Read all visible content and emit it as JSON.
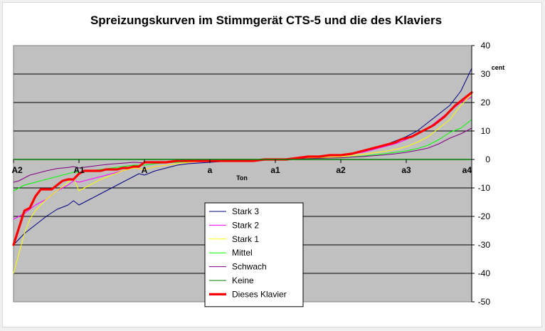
{
  "chart_data": {
    "type": "line",
    "title": "Spreizungskurven im Stimmgerät CTS-5 und die des Klaviers",
    "xlabel": "Ton",
    "ylabel": "cent",
    "ylim": [
      -50,
      40
    ],
    "yticks": [
      40,
      30,
      20,
      10,
      0,
      -10,
      -20,
      -30,
      -40,
      -50
    ],
    "grid": true,
    "legend_position": "bottom-center",
    "plot_background": "#c0c0c0",
    "x_range": [
      0,
      84
    ],
    "x_ticks": [
      {
        "x": 0,
        "label": "A2"
      },
      {
        "x": 12,
        "label": "A1"
      },
      {
        "x": 24,
        "label": "A"
      },
      {
        "x": 36,
        "label": "a"
      },
      {
        "x": 48,
        "label": "a1"
      },
      {
        "x": 60,
        "label": "a2"
      },
      {
        "x": 72,
        "label": "a3"
      },
      {
        "x": 84,
        "label": "a4"
      }
    ],
    "series": [
      {
        "name": "Stark 3",
        "color": "#000080",
        "width": 1,
        "points": [
          [
            0,
            -30
          ],
          [
            2,
            -26
          ],
          [
            4,
            -23
          ],
          [
            6,
            -20
          ],
          [
            8,
            -17.5
          ],
          [
            10,
            -16
          ],
          [
            11,
            -14.5
          ],
          [
            12,
            -16
          ],
          [
            14,
            -14
          ],
          [
            16,
            -12
          ],
          [
            18,
            -10
          ],
          [
            20,
            -8
          ],
          [
            22,
            -6
          ],
          [
            23,
            -5
          ],
          [
            24,
            -5.5
          ],
          [
            26,
            -4
          ],
          [
            28,
            -3
          ],
          [
            30,
            -2
          ],
          [
            32,
            -1.5
          ],
          [
            36,
            -1
          ],
          [
            40,
            -0.5
          ],
          [
            44,
            -0.3
          ],
          [
            48,
            0
          ],
          [
            52,
            0.5
          ],
          [
            56,
            1
          ],
          [
            60,
            1.5
          ],
          [
            62,
            2
          ],
          [
            64,
            3
          ],
          [
            66,
            4
          ],
          [
            68,
            5
          ],
          [
            70,
            6.5
          ],
          [
            72,
            8
          ],
          [
            74,
            10
          ],
          [
            76,
            13
          ],
          [
            78,
            16
          ],
          [
            80,
            19
          ],
          [
            82,
            24
          ],
          [
            84,
            32
          ]
        ]
      },
      {
        "name": "Stark 2",
        "color": "#ff00ff",
        "width": 1,
        "points": [
          [
            0,
            -21
          ],
          [
            2,
            -19
          ],
          [
            4,
            -16
          ],
          [
            6,
            -14
          ],
          [
            8,
            -11
          ],
          [
            10,
            -9
          ],
          [
            11,
            -7.5
          ],
          [
            12,
            -8
          ],
          [
            14,
            -7
          ],
          [
            16,
            -6
          ],
          [
            18,
            -5
          ],
          [
            20,
            -4
          ],
          [
            22,
            -3
          ],
          [
            24,
            -3.5
          ],
          [
            26,
            -2.5
          ],
          [
            28,
            -2
          ],
          [
            30,
            -1.5
          ],
          [
            32,
            -1
          ],
          [
            36,
            -0.7
          ],
          [
            40,
            -0.4
          ],
          [
            44,
            -0.2
          ],
          [
            48,
            0
          ],
          [
            52,
            0.5
          ],
          [
            56,
            1
          ],
          [
            60,
            1.5
          ],
          [
            62,
            2
          ],
          [
            64,
            2.5
          ],
          [
            66,
            3.5
          ],
          [
            68,
            4.5
          ],
          [
            70,
            5.5
          ],
          [
            72,
            7
          ],
          [
            74,
            9
          ],
          [
            76,
            11
          ],
          [
            78,
            14
          ],
          [
            80,
            17
          ],
          [
            82,
            20
          ],
          [
            84,
            22
          ]
        ]
      },
      {
        "name": "Stark 1",
        "color": "#ffff00",
        "width": 1,
        "points": [
          [
            0,
            -40
          ],
          [
            1,
            -33
          ],
          [
            2,
            -26
          ],
          [
            3,
            -21
          ],
          [
            4,
            -18
          ],
          [
            6,
            -14
          ],
          [
            8,
            -11
          ],
          [
            10,
            -8
          ],
          [
            11,
            -6.5
          ],
          [
            12,
            -11
          ],
          [
            13,
            -10
          ],
          [
            14,
            -9
          ],
          [
            16,
            -7
          ],
          [
            18,
            -5.5
          ],
          [
            20,
            -4
          ],
          [
            22,
            -3
          ],
          [
            24,
            -3.5
          ],
          [
            26,
            -2.5
          ],
          [
            28,
            -2
          ],
          [
            30,
            -1.5
          ],
          [
            32,
            -1
          ],
          [
            36,
            -0.6
          ],
          [
            40,
            -0.3
          ],
          [
            44,
            -0.1
          ],
          [
            48,
            0
          ],
          [
            52,
            0.3
          ],
          [
            56,
            0.6
          ],
          [
            60,
            1
          ],
          [
            62,
            1.3
          ],
          [
            64,
            1.8
          ],
          [
            66,
            2.3
          ],
          [
            68,
            2.8
          ],
          [
            70,
            3.5
          ],
          [
            72,
            4.5
          ],
          [
            74,
            6
          ],
          [
            76,
            8
          ],
          [
            78,
            11
          ],
          [
            80,
            14
          ],
          [
            82,
            19
          ],
          [
            84,
            23
          ]
        ]
      },
      {
        "name": "Mittel",
        "color": "#00ff00",
        "width": 1,
        "points": [
          [
            0,
            -11
          ],
          [
            1,
            -10
          ],
          [
            2,
            -9
          ],
          [
            3,
            -8.5
          ],
          [
            4,
            -8
          ],
          [
            6,
            -7
          ],
          [
            8,
            -6
          ],
          [
            10,
            -5
          ],
          [
            11,
            -4.5
          ],
          [
            12,
            -4.5
          ],
          [
            14,
            -4
          ],
          [
            16,
            -3.5
          ],
          [
            18,
            -3
          ],
          [
            20,
            -2.5
          ],
          [
            22,
            -2
          ],
          [
            24,
            -2
          ],
          [
            26,
            -1.5
          ],
          [
            28,
            -1.2
          ],
          [
            30,
            -1
          ],
          [
            32,
            -0.8
          ],
          [
            36,
            -0.5
          ],
          [
            40,
            -0.2
          ],
          [
            44,
            -0.1
          ],
          [
            48,
            0
          ],
          [
            52,
            0.2
          ],
          [
            56,
            0.4
          ],
          [
            60,
            0.6
          ],
          [
            62,
            0.9
          ],
          [
            64,
            1.2
          ],
          [
            66,
            1.6
          ],
          [
            68,
            2
          ],
          [
            70,
            2.5
          ],
          [
            72,
            3
          ],
          [
            74,
            3.8
          ],
          [
            76,
            5
          ],
          [
            78,
            7
          ],
          [
            80,
            9.5
          ],
          [
            82,
            11
          ],
          [
            84,
            14
          ]
        ]
      },
      {
        "name": "Schwach",
        "color": "#800080",
        "width": 1,
        "points": [
          [
            0,
            -8
          ],
          [
            1,
            -7.5
          ],
          [
            2,
            -6.5
          ],
          [
            3,
            -5.5
          ],
          [
            4,
            -5
          ],
          [
            6,
            -4
          ],
          [
            8,
            -3.2
          ],
          [
            10,
            -2.8
          ],
          [
            11,
            -2.5
          ],
          [
            12,
            -3
          ],
          [
            14,
            -2.5
          ],
          [
            16,
            -2
          ],
          [
            18,
            -1.6
          ],
          [
            20,
            -1.3
          ],
          [
            22,
            -1
          ],
          [
            24,
            -1.2
          ],
          [
            26,
            -1
          ],
          [
            28,
            -0.8
          ],
          [
            30,
            -0.6
          ],
          [
            32,
            -0.5
          ],
          [
            36,
            -0.3
          ],
          [
            40,
            -0.2
          ],
          [
            44,
            -0.1
          ],
          [
            48,
            0
          ],
          [
            52,
            0.2
          ],
          [
            56,
            0.4
          ],
          [
            60,
            0.6
          ],
          [
            62,
            0.8
          ],
          [
            64,
            1
          ],
          [
            66,
            1.3
          ],
          [
            68,
            1.6
          ],
          [
            70,
            2
          ],
          [
            72,
            2.5
          ],
          [
            74,
            3.2
          ],
          [
            76,
            4
          ],
          [
            78,
            5.5
          ],
          [
            80,
            7.5
          ],
          [
            82,
            9
          ],
          [
            84,
            11
          ]
        ]
      },
      {
        "name": "Keine",
        "color": "#008000",
        "width": 1,
        "points": [
          [
            0,
            0
          ],
          [
            84,
            0
          ]
        ]
      },
      {
        "name": "Dieses Klavier",
        "color": "#ff0000",
        "width": 3.2,
        "points": [
          [
            0,
            -30
          ],
          [
            2,
            -18
          ],
          [
            3,
            -17
          ],
          [
            4,
            -13
          ],
          [
            5,
            -10.5
          ],
          [
            6,
            -10.5
          ],
          [
            7,
            -10.5
          ],
          [
            8,
            -9
          ],
          [
            9,
            -7.5
          ],
          [
            10,
            -7
          ],
          [
            11,
            -7
          ],
          [
            12,
            -5
          ],
          [
            13,
            -4
          ],
          [
            14,
            -4
          ],
          [
            15,
            -4
          ],
          [
            16,
            -4
          ],
          [
            17,
            -3.5
          ],
          [
            18,
            -3.5
          ],
          [
            19,
            -3.5
          ],
          [
            20,
            -3
          ],
          [
            21,
            -3
          ],
          [
            22,
            -2.5
          ],
          [
            23,
            -2.5
          ],
          [
            24,
            -1
          ],
          [
            25,
            -1
          ],
          [
            26,
            -1
          ],
          [
            28,
            -1
          ],
          [
            30,
            -0.5
          ],
          [
            32,
            -0.5
          ],
          [
            36,
            -0.5
          ],
          [
            40,
            -0.5
          ],
          [
            44,
            -0.5
          ],
          [
            46,
            0
          ],
          [
            48,
            0
          ],
          [
            50,
            0
          ],
          [
            52,
            0.5
          ],
          [
            54,
            1
          ],
          [
            56,
            1
          ],
          [
            58,
            1.5
          ],
          [
            60,
            1.5
          ],
          [
            62,
            2
          ],
          [
            63,
            2.5
          ],
          [
            64,
            3
          ],
          [
            65,
            3.5
          ],
          [
            66,
            4
          ],
          [
            67,
            4.5
          ],
          [
            68,
            5
          ],
          [
            69,
            5.5
          ],
          [
            70,
            6
          ],
          [
            71,
            7
          ],
          [
            72,
            7.5
          ],
          [
            73,
            8
          ],
          [
            74,
            9
          ],
          [
            75,
            10
          ],
          [
            76,
            11
          ],
          [
            77,
            12
          ],
          [
            78,
            13.5
          ],
          [
            79,
            15
          ],
          [
            80,
            17
          ],
          [
            81,
            19
          ],
          [
            82,
            20.5
          ],
          [
            83,
            22
          ],
          [
            84,
            23.5
          ]
        ]
      }
    ]
  }
}
